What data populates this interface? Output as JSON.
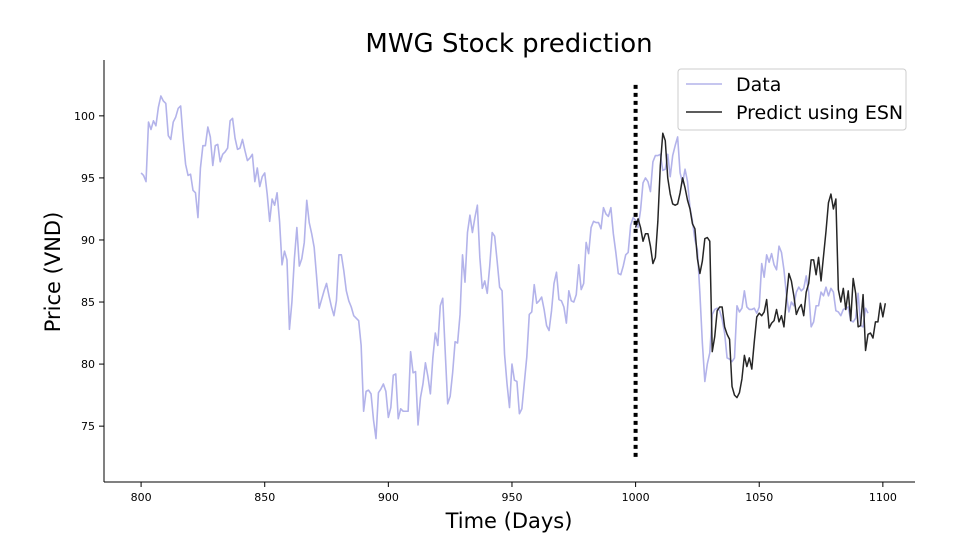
{
  "chart_data": {
    "type": "line",
    "title": "MWG Stock prediction",
    "xlabel": "Time (Days)",
    "ylabel": "Price (VND)",
    "xlim": [
      785,
      1113
    ],
    "ylim": [
      70.5,
      104.5
    ],
    "xticks": [
      800,
      850,
      900,
      950,
      1000,
      1050,
      1100
    ],
    "yticks": [
      75,
      80,
      85,
      90,
      95,
      100
    ],
    "grid": false,
    "legend_position": "top-right",
    "divider": {
      "x": 1000,
      "y_range": [
        72.5,
        102.5
      ],
      "style": "dotted"
    },
    "series": [
      {
        "name": "Data",
        "color": "#b3b3ea",
        "x_start": 800,
        "values": [
          95.4,
          95.2,
          94.7,
          99.5,
          98.9,
          99.6,
          99.2,
          100.7,
          101.6,
          101.2,
          101.0,
          98.4,
          98.1,
          99.5,
          99.9,
          100.6,
          100.8,
          98.2,
          96.1,
          95.2,
          95.3,
          94.0,
          93.8,
          91.8,
          95.8,
          97.6,
          97.6,
          99.1,
          98.3,
          96.0,
          97.6,
          97.7,
          96.3,
          96.9,
          97.1,
          97.4,
          99.6,
          99.8,
          98.2,
          97.3,
          97.4,
          98.1,
          97.2,
          96.4,
          96.6,
          96.9,
          94.7,
          95.8,
          94.3,
          95.1,
          95.4,
          93.7,
          91.5,
          93.3,
          92.8,
          93.8,
          91.5,
          88.0,
          89.1,
          88.4,
          82.8,
          85.0,
          88.5,
          91.0,
          87.9,
          88.5,
          89.8,
          93.2,
          91.4,
          90.5,
          89.4,
          87.0,
          84.5,
          85.2,
          85.9,
          86.5,
          85.5,
          84.6,
          83.9,
          85.1,
          88.8,
          88.8,
          87.5,
          85.9,
          85.1,
          84.6,
          83.9,
          83.7,
          83.5,
          81.5,
          76.2,
          77.8,
          77.9,
          77.6,
          75.5,
          74.0,
          77.7,
          78.0,
          78.4,
          77.8,
          75.7,
          76.5,
          79.1,
          79.2,
          75.6,
          76.4,
          76.2,
          76.2,
          76.2,
          81.0,
          79.3,
          79.4,
          75.1,
          77.3,
          78.4,
          80.1,
          79.0,
          77.6,
          80.5,
          82.5,
          81.5,
          84.7,
          85.3,
          81.0,
          76.8,
          77.4,
          79.3,
          81.8,
          81.7,
          84.0,
          88.8,
          86.6,
          90.6,
          92.0,
          90.6,
          91.8,
          92.8,
          88.6,
          86.1,
          86.7,
          85.7,
          87.9,
          90.6,
          90.3,
          88.3,
          86.2,
          85.9,
          80.8,
          78.4,
          76.5,
          80.0,
          78.7,
          78.6,
          76.0,
          76.4,
          78.5,
          80.6,
          84.0,
          84.2,
          86.4,
          84.9,
          85.1,
          85.4,
          84.4,
          83.1,
          82.7,
          84.3,
          86.5,
          87.4,
          85.2,
          85.1,
          84.6,
          83.3,
          85.9,
          85.1,
          85.0,
          85.6,
          88.0,
          86.0,
          86.5,
          89.8,
          88.9,
          91.0,
          91.5,
          91.4,
          91.4,
          90.9,
          92.6,
          92.1,
          91.9,
          92.6,
          90.5,
          89.0,
          87.3,
          87.2,
          87.9,
          88.8,
          89.0,
          91.2,
          91.8,
          91.6,
          91.0,
          92.4,
          94.6,
          95.0,
          94.7,
          93.9,
          96.3,
          96.8,
          96.8,
          96.9,
          95.6,
          95.7,
          96.9,
          95.1,
          96.8,
          97.6,
          98.3,
          95.4,
          94.6,
          95.7,
          94.7,
          92.6,
          91.5,
          90.0,
          89.2,
          85.7,
          81.7,
          78.6,
          80.0,
          80.9,
          84.0,
          84.4,
          84.5,
          84.3,
          83.6,
          82.5,
          80.5,
          80.4,
          80.2,
          80.5,
          84.7,
          84.2,
          84.5,
          85.9,
          84.6,
          84.4,
          84.4,
          84.5,
          84.1,
          84.6,
          88.1,
          87.0,
          88.8,
          88.2,
          88.9,
          88.0,
          87.6,
          89.5,
          89.0,
          87.6,
          85.6,
          84.2,
          85.0,
          84.7,
          85.8,
          86.2,
          85.9,
          86.1,
          87.1,
          85.8,
          83.0,
          83.4,
          84.7,
          84.7,
          85.8,
          85.5,
          86.2,
          85.5,
          86.1,
          85.8,
          84.3,
          84.2,
          83.9,
          84.4,
          84.5,
          84.6,
          83.5,
          83.4,
          83.7,
          85.7,
          83.1,
          83.0,
          84.5,
          84.1
        ]
      },
      {
        "name": "Predict using ESN",
        "color": "#262626",
        "x_start": 1000,
        "values": [
          91.0,
          91.7,
          91.0,
          89.9,
          90.5,
          90.5,
          89.5,
          88.1,
          88.6,
          91.5,
          96.0,
          98.6,
          98.0,
          95.0,
          93.7,
          92.9,
          92.8,
          92.9,
          93.8,
          95.0,
          94.2,
          93.2,
          92.5,
          91.3,
          90.9,
          88.5,
          87.3,
          88.3,
          90.1,
          90.2,
          89.9,
          81.0,
          82.2,
          84.3,
          84.6,
          84.6,
          83.0,
          82.4,
          82.0,
          78.2,
          77.5,
          77.3,
          77.7,
          78.8,
          80.7,
          79.8,
          80.5,
          79.6,
          81.8,
          83.8,
          84.1,
          83.9,
          84.2,
          85.2,
          82.9,
          83.3,
          83.5,
          84.4,
          83.4,
          83.9,
          83.0,
          85.3,
          87.3,
          86.7,
          85.5,
          84.0,
          84.5,
          84.8,
          83.9,
          85.8,
          86.5,
          88.4,
          88.4,
          87.2,
          88.6,
          86.7,
          88.7,
          90.7,
          93.0,
          93.7,
          92.5,
          93.3,
          86.0,
          85.0,
          86.1,
          84.4,
          85.9,
          83.5,
          86.9,
          85.7,
          83.0,
          83.1,
          85.6,
          81.1,
          82.4,
          82.5,
          82.1,
          83.4,
          83.4,
          84.9,
          83.8,
          84.9
        ]
      }
    ]
  }
}
